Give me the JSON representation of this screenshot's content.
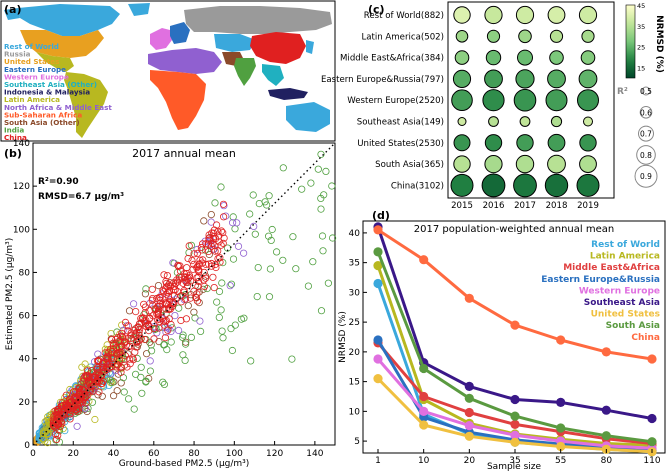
{
  "panels": {
    "a": "(a)",
    "b": "(b)",
    "c": "(c)",
    "d": "(d)"
  },
  "map": {
    "legend": [
      {
        "label": "Rest of World",
        "color": "#3aa8dc"
      },
      {
        "label": "Russia",
        "color": "#9a9a9a"
      },
      {
        "label": "United States",
        "color": "#e8a020"
      },
      {
        "label": "Eastern Europe",
        "color": "#2a70c0"
      },
      {
        "label": "Western Europe",
        "color": "#e070e0"
      },
      {
        "label": "Southeast Asia (Other)",
        "color": "#20b0c0"
      },
      {
        "label": "Indonesia & Malaysia",
        "color": "#202060"
      },
      {
        "label": "Latin America",
        "color": "#b8b820"
      },
      {
        "label": "North Africa & Middle East",
        "color": "#9060d0"
      },
      {
        "label": "Sub-Saharan Africa",
        "color": "#ff5a28"
      },
      {
        "label": "South Asia (Other)",
        "color": "#8b4a2a"
      },
      {
        "label": "India",
        "color": "#50a040"
      },
      {
        "label": "China",
        "color": "#e02020"
      }
    ]
  },
  "chart_data": [
    {
      "id": "b",
      "type": "scatter",
      "title": "2017 annual mean",
      "xlabel": "Ground-based PM2.5 (μg/m³)",
      "ylabel": "Estimated PM2.5 (μg/m³)",
      "xlim": [
        0,
        150
      ],
      "ylim": [
        0,
        140
      ],
      "xticks": [
        "0",
        "20",
        "40",
        "60",
        "80",
        "100",
        "120",
        "140"
      ],
      "yticks": [
        "0",
        "20",
        "40",
        "60",
        "80",
        "100",
        "120",
        "140"
      ],
      "annotations": [
        "R²=0.90",
        "RMSD=6.7 μg/m³"
      ],
      "reference_line": "1:1 dotted",
      "groups": [
        {
          "name": "United States",
          "color": "#e8a020",
          "x_range": [
            2,
            15
          ],
          "y_mean_ratio": 1.0,
          "spread": 1.8
        },
        {
          "name": "Western Europe",
          "color": "#e070e0",
          "x_range": [
            5,
            25
          ],
          "y_mean_ratio": 1.0,
          "spread": 2.5
        },
        {
          "name": "Rest of World",
          "color": "#3aa8dc",
          "x_range": [
            3,
            40
          ],
          "y_mean_ratio": 1.0,
          "spread": 4.5
        },
        {
          "name": "Eastern Europe",
          "color": "#2a70c0",
          "x_range": [
            5,
            30
          ],
          "y_mean_ratio": 1.0,
          "spread": 3.0
        },
        {
          "name": "Latin America",
          "color": "#b8b820",
          "x_range": [
            5,
            45
          ],
          "y_mean_ratio": 1.0,
          "spread": 6.0
        },
        {
          "name": "South Asia (Other)",
          "color": "#8b4a2a",
          "x_range": [
            20,
            90
          ],
          "y_mean_ratio": 0.95,
          "spread": 10.0
        },
        {
          "name": "India",
          "color": "#50a040",
          "x_range": [
            10,
            150
          ],
          "y_mean_ratio": 0.8,
          "spread": 12.0
        },
        {
          "name": "North Africa & Middle East",
          "color": "#9060d0",
          "x_range": [
            20,
            110
          ],
          "y_mean_ratio": 0.9,
          "spread": 9.0
        },
        {
          "name": "China",
          "color": "#e02020",
          "x_range": [
            10,
            95
          ],
          "y_mean_ratio": 1.0,
          "spread": 5.0
        }
      ]
    },
    {
      "id": "c",
      "type": "heatmap",
      "rows": [
        "Rest of World(882)",
        "Latin America(502)",
        "Middle East&Africa(384)",
        "Eastern Europe&Russia(797)",
        "Western Europe(2520)",
        "Southeast Asia(149)",
        "United States(2530)",
        "South Asia(365)",
        "China(3102)"
      ],
      "columns": [
        "2015",
        "2016",
        "2017",
        "2018",
        "2019"
      ],
      "r2": [
        [
          0.74,
          0.76,
          0.76,
          0.75,
          0.76
        ],
        [
          0.6,
          0.62,
          0.63,
          0.62,
          0.62
        ],
        [
          0.66,
          0.68,
          0.7,
          0.66,
          0.66
        ],
        [
          0.76,
          0.78,
          0.79,
          0.78,
          0.78
        ],
        [
          0.86,
          0.88,
          0.89,
          0.87,
          0.87
        ],
        [
          0.5,
          0.55,
          0.55,
          0.56,
          0.53
        ],
        [
          0.73,
          0.74,
          0.74,
          0.75,
          0.74
        ],
        [
          0.74,
          0.76,
          0.77,
          0.78,
          0.75
        ],
        [
          0.9,
          0.92,
          0.92,
          0.91,
          0.9
        ]
      ],
      "nrmsd": [
        [
          40,
          37,
          38,
          39,
          38
        ],
        [
          32,
          30,
          32,
          35,
          33
        ],
        [
          30,
          26,
          26,
          28,
          29
        ],
        [
          24,
          22,
          23,
          24,
          25
        ],
        [
          22,
          20,
          21,
          22,
          21
        ],
        [
          38,
          35,
          36,
          34,
          38
        ],
        [
          21,
          20,
          22,
          22,
          21
        ],
        [
          35,
          33,
          34,
          35,
          34
        ],
        [
          18,
          15,
          17,
          16,
          17
        ]
      ],
      "colorbar": {
        "label": "NRMSD (%)",
        "ticks": [
          "15",
          "25",
          "35",
          "45"
        ],
        "min": 10,
        "max": 45
      },
      "size_legend": {
        "title": "R²",
        "values": [
          "0.5",
          "0.6",
          "0.7",
          "0.8",
          "0.9"
        ]
      }
    },
    {
      "id": "d",
      "type": "line",
      "title": "2017 population-weighted annual mean",
      "xlabel": "Sample size",
      "ylabel": "NRMSD (%)",
      "categories": [
        "1",
        "10",
        "20",
        "35",
        "55",
        "80",
        "110"
      ],
      "ylim": [
        3,
        42
      ],
      "yticks": [
        "5",
        "10",
        "15",
        "20",
        "25",
        "30",
        "35",
        "40"
      ],
      "series": [
        {
          "name": "Rest of World",
          "color": "#3aa8dc",
          "values": [
            31.5,
            9.5,
            6.2,
            4.8,
            4.2,
            3.6,
            3.2
          ]
        },
        {
          "name": "Latin America",
          "color": "#b8b820",
          "values": [
            34.5,
            12.0,
            8.0,
            6.2,
            5.3,
            4.6,
            4.3
          ]
        },
        {
          "name": "Middle East&Africa",
          "color": "#e04040",
          "values": [
            21.5,
            12.5,
            9.8,
            7.8,
            6.6,
            5.4,
            4.6
          ]
        },
        {
          "name": "Eastern Europe&Russia",
          "color": "#2a70c0",
          "values": [
            22.0,
            9.0,
            6.5,
            5.2,
            4.5,
            3.9,
            3.4
          ]
        },
        {
          "name": "Western Europe",
          "color": "#e070e0",
          "values": [
            18.8,
            10.0,
            7.6,
            6.0,
            5.0,
            4.2,
            3.8
          ]
        },
        {
          "name": "Southeast Asia",
          "color": "#3a1888",
          "values": [
            41.0,
            18.2,
            14.2,
            12.0,
            11.5,
            10.2,
            8.8
          ]
        },
        {
          "name": "United States",
          "color": "#f0c040",
          "values": [
            15.5,
            7.7,
            5.8,
            4.8,
            4.1,
            3.6,
            3.2
          ]
        },
        {
          "name": "South Asia",
          "color": "#5a9a40",
          "values": [
            36.8,
            17.2,
            12.2,
            9.2,
            7.2,
            5.9,
            4.9
          ]
        },
        {
          "name": "China",
          "color": "#ff6a40",
          "values": [
            40.5,
            35.5,
            29.0,
            24.5,
            22.0,
            20.0,
            18.8
          ]
        }
      ]
    }
  ]
}
